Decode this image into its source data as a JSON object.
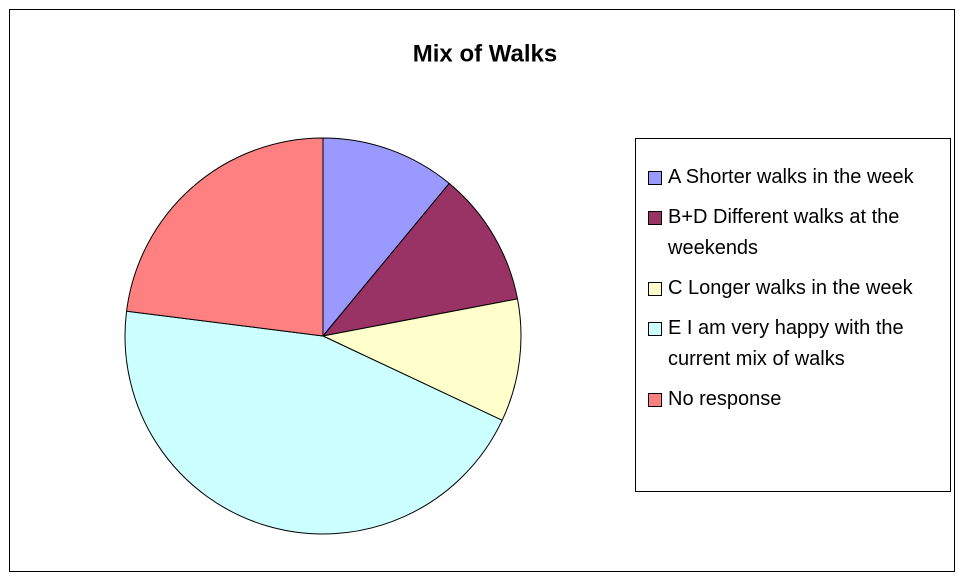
{
  "chart_data": {
    "type": "pie",
    "title": "Mix of Walks",
    "categories": [
      "A Shorter walks in the week",
      "B+D Different walks at the weekends",
      "C Longer walks in the week",
      "E I am very happy with the current mix of walks",
      "No response"
    ],
    "values": [
      11,
      11,
      10,
      45,
      23
    ],
    "colors": [
      "#9999ff",
      "#993366",
      "#ffffcc",
      "#ccffff",
      "#ff8080"
    ],
    "legend": "right"
  }
}
